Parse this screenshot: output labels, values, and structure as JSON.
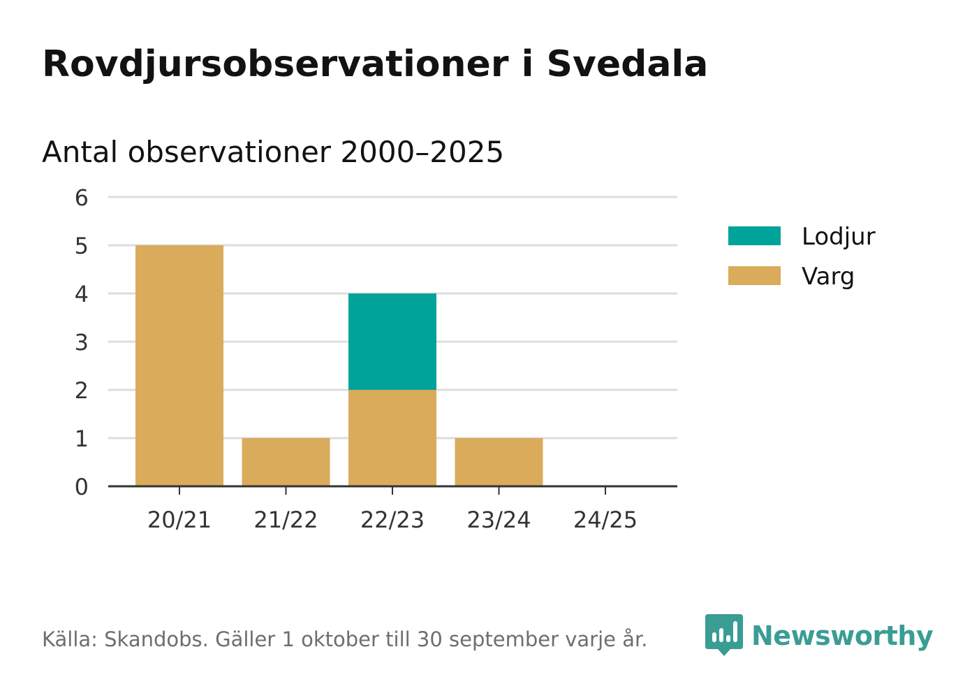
{
  "title": "Rovdjursobservationer i Svedala",
  "subtitle": "Antal observationer 2000–2025",
  "footer": "Källa: Skandobs. Gäller 1 oktober till 30 september varje år.",
  "brand": {
    "name": "Newsworthy",
    "icon": "newsworthy-logo-icon",
    "color": "#3a9d94"
  },
  "chart_data": {
    "type": "bar",
    "stacked": true,
    "title": "Rovdjursobservationer i Svedala",
    "subtitle": "Antal observationer 2000–2025",
    "xlabel": "",
    "ylabel": "",
    "categories": [
      "20/21",
      "21/22",
      "22/23",
      "23/24",
      "24/25"
    ],
    "series": [
      {
        "name": "Varg",
        "color": "#d9ab5b",
        "values": [
          5,
          1,
          2,
          1,
          0
        ]
      },
      {
        "name": "Lodjur",
        "color": "#00a39a",
        "values": [
          0,
          0,
          2,
          0,
          0
        ]
      }
    ],
    "legend": [
      {
        "name": "Lodjur",
        "color": "#00a39a"
      },
      {
        "name": "Varg",
        "color": "#d9ab5b"
      }
    ],
    "ylim": [
      0,
      6
    ],
    "yticks": [
      "0",
      "1",
      "2",
      "3",
      "4",
      "5",
      "6"
    ],
    "grid": true,
    "legend_position": "right"
  }
}
